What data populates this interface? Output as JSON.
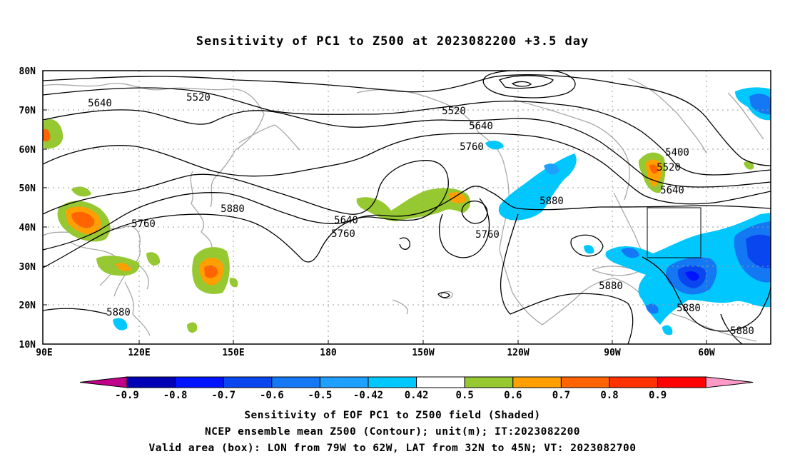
{
  "title": "Sensitivity of PC1 to Z500 at 2023082200 +3.5 day",
  "axes": {
    "lat_labels": [
      "80N",
      "70N",
      "60N",
      "50N",
      "40N",
      "30N",
      "20N",
      "10N"
    ],
    "lon_labels": [
      "90E",
      "120E",
      "150E",
      "180",
      "150W",
      "120W",
      "90W",
      "60W"
    ]
  },
  "contour_labels": [
    "5640",
    "5520",
    "5520",
    "5640",
    "5760",
    "5400",
    "5520",
    "5640",
    "5880",
    "5880",
    "5760",
    "5640",
    "5760",
    "5760",
    "5880",
    "5880",
    "5880",
    "5880"
  ],
  "colorbar": {
    "ticks": [
      "-0.9",
      "-0.8",
      "-0.7",
      "-0.6",
      "-0.5",
      "-0.42",
      "0.42",
      "0.5",
      "0.6",
      "0.7",
      "0.8",
      "0.9"
    ],
    "colors": [
      "#c0008a",
      "#0000b4",
      "#0014ff",
      "#0a46f0",
      "#1478f5",
      "#1ea0ff",
      "#00c8ff",
      "#ffffff",
      "#96c832",
      "#ffa000",
      "#ff6400",
      "#ff3200",
      "#ff0000",
      "#ff9ac8"
    ]
  },
  "footer": {
    "line1": "Sensitivity of EOF PC1 to Z500 field (Shaded)",
    "line2": "NCEP ensemble mean Z500 (Contour); unit(m); IT:2023082200",
    "line3": "Valid area (box): LON from 79W to 62W, LAT from 32N to 45N; VT: 2023082700"
  },
  "valid_box": {
    "lon_from": "79W",
    "lon_to": "62W",
    "lat_from": "32N",
    "lat_to": "45N"
  }
}
